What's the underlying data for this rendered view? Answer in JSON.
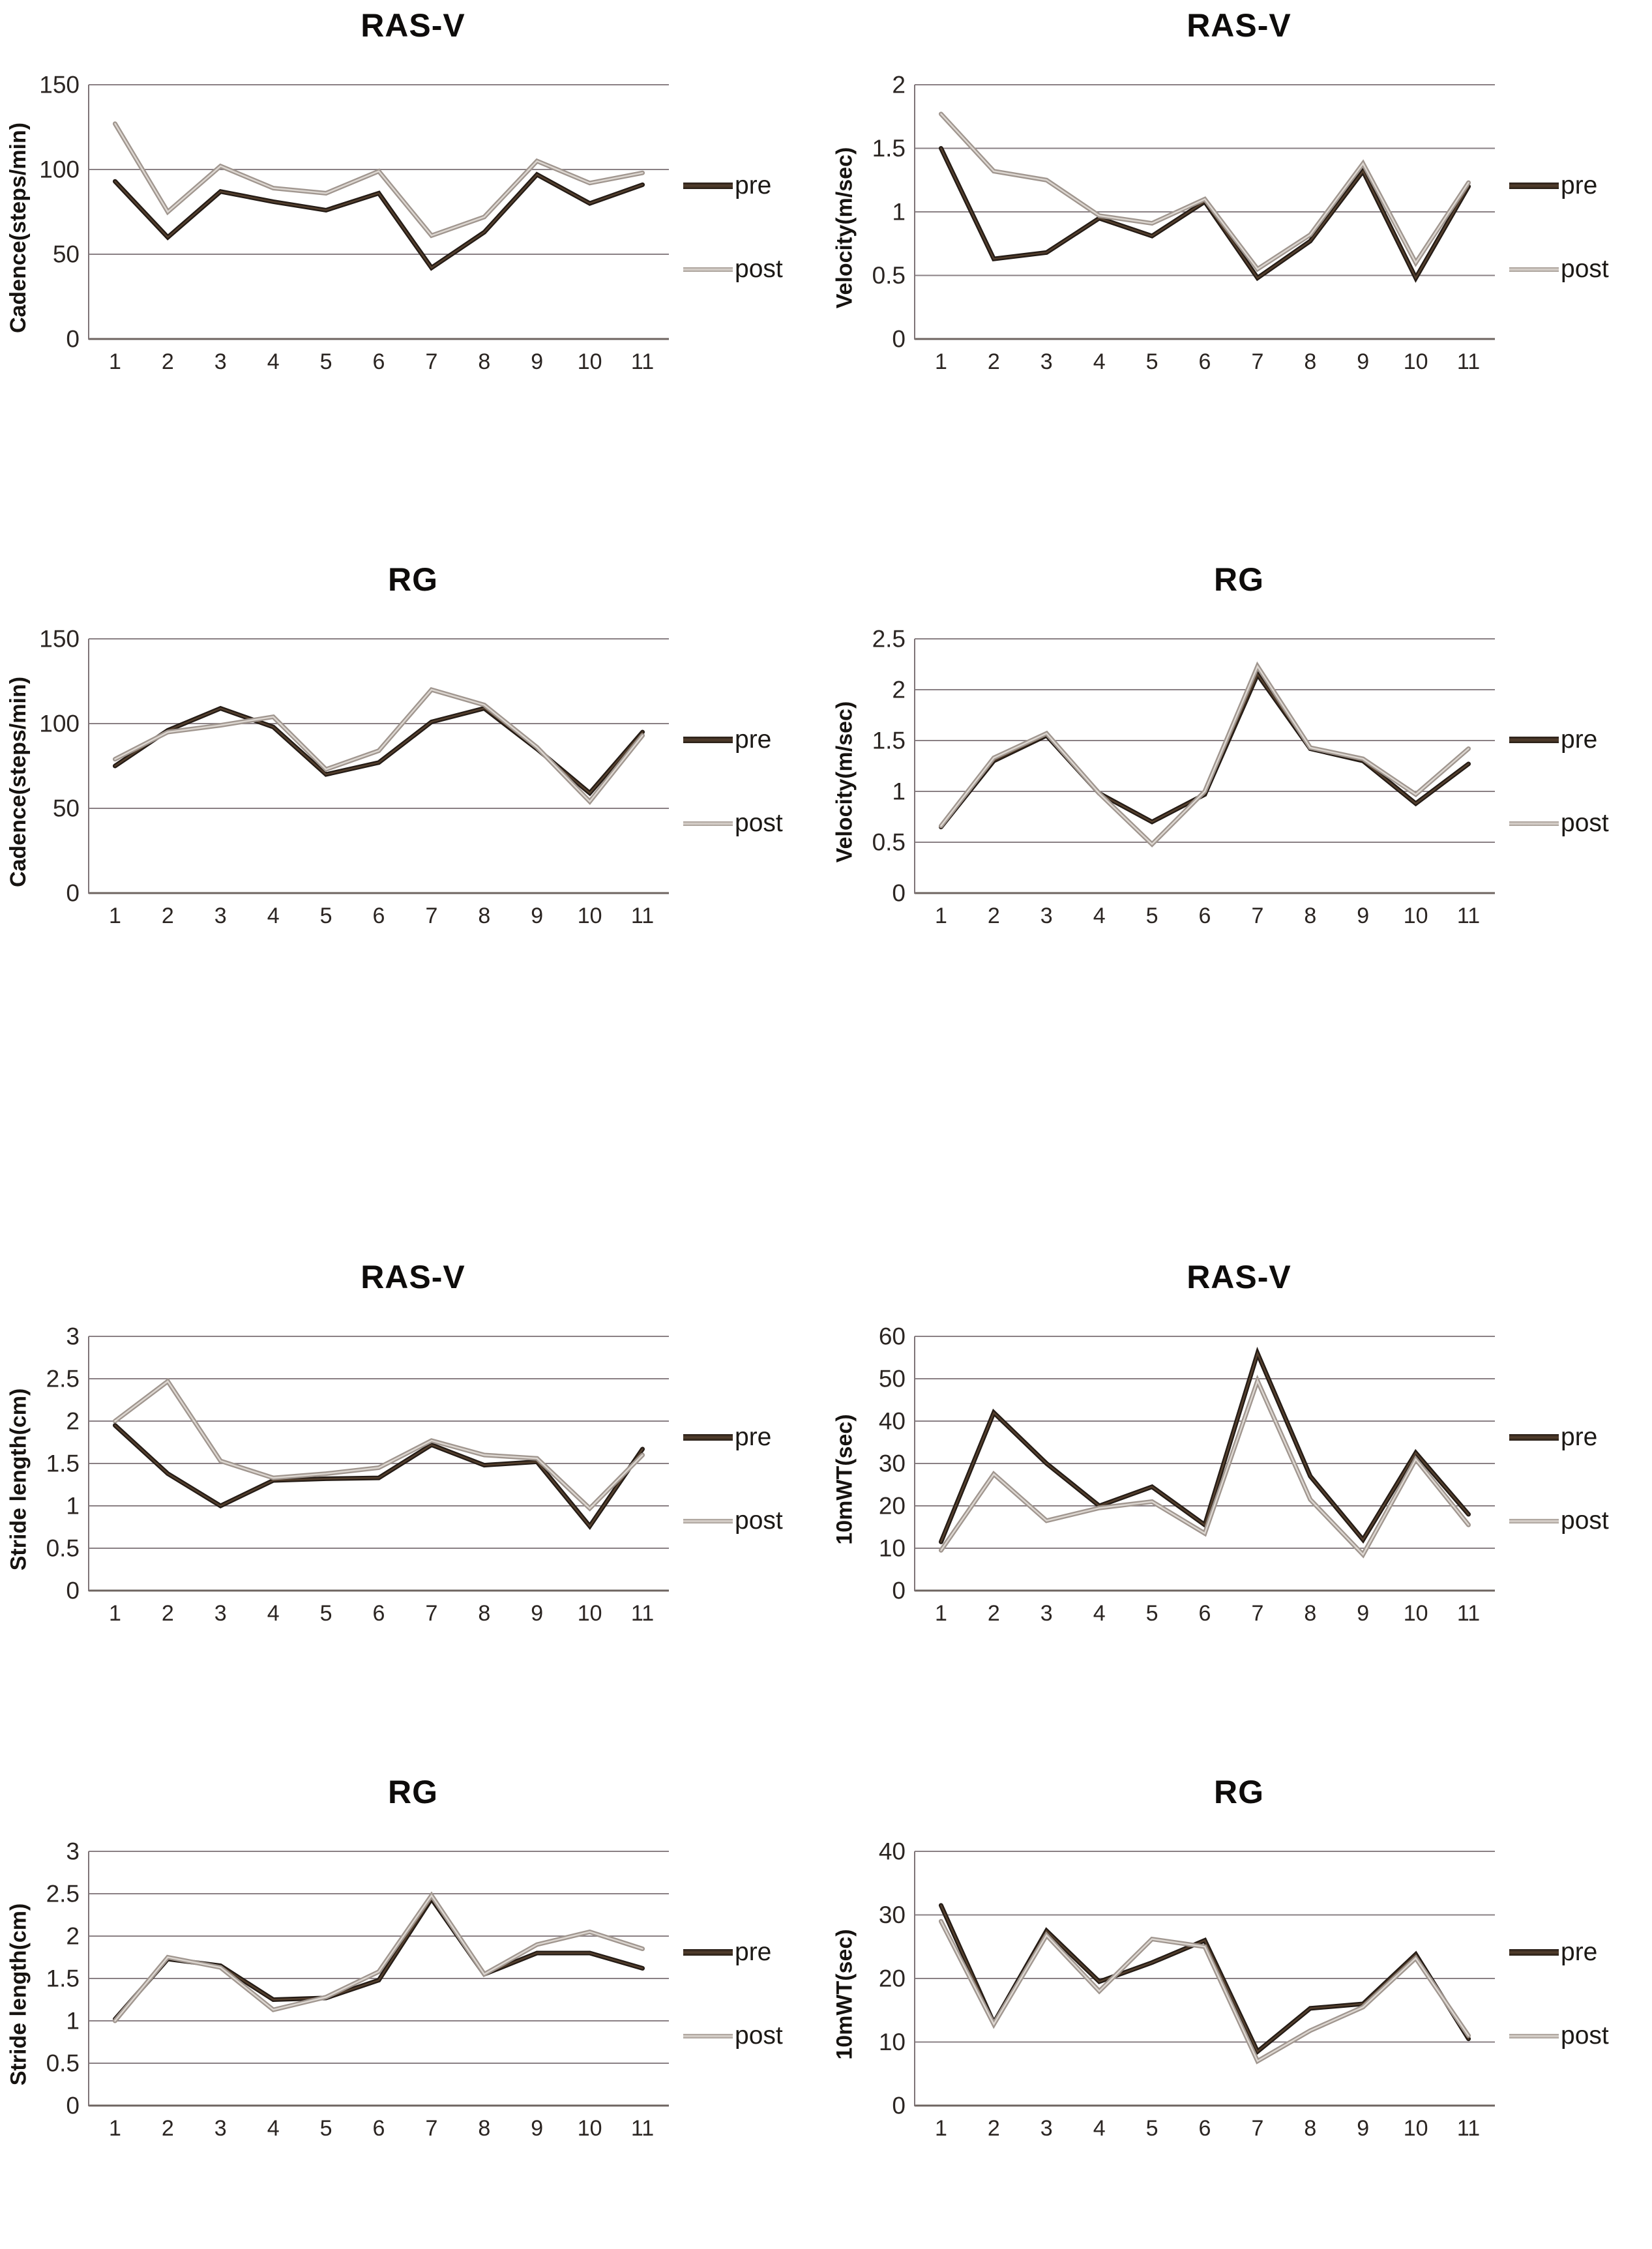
{
  "legend": {
    "pre": "pre",
    "post": "post"
  },
  "colors": {
    "pre_outer": "#241b15",
    "pre_inner": "#55402e",
    "post_outer": "#a0968f",
    "post_inner": "#ddd7d1",
    "grid": "#8a8084",
    "zero_axis": "#6e6460",
    "axis_line": "#7e7477",
    "tick_text": "#2b2522",
    "title_text": "#0e0c0b"
  },
  "chart_layout": {
    "legend_position": "right",
    "grid": true,
    "x_axis_type": "category"
  },
  "chart_data": [
    {
      "type": "line",
      "title": "RAS-V",
      "ylabel": "Cadence(steps/min)",
      "xlabel": "",
      "categories": [
        "1",
        "2",
        "3",
        "4",
        "5",
        "6",
        "7",
        "8",
        "9",
        "10",
        "11"
      ],
      "ymax": 150,
      "yticks": [
        0,
        50,
        100,
        150
      ],
      "series": [
        {
          "name": "pre",
          "values": [
            93,
            60,
            87,
            81,
            76,
            86,
            42,
            63,
            97,
            80,
            91
          ]
        },
        {
          "name": "post",
          "values": [
            127,
            75,
            102,
            89,
            86,
            99,
            61,
            72,
            105,
            92,
            98
          ]
        }
      ]
    },
    {
      "type": "line",
      "title": "RAS-V",
      "ylabel": "Velocity(m/sec)",
      "xlabel": "",
      "categories": [
        "1",
        "2",
        "3",
        "4",
        "5",
        "6",
        "7",
        "8",
        "9",
        "10",
        "11"
      ],
      "ymax": 2,
      "yticks": [
        0,
        0.5,
        1,
        1.5,
        2
      ],
      "series": [
        {
          "name": "pre",
          "values": [
            1.5,
            0.63,
            0.68,
            0.95,
            0.81,
            1.08,
            0.48,
            0.77,
            1.32,
            0.48,
            1.2
          ]
        },
        {
          "name": "post",
          "values": [
            1.77,
            1.32,
            1.25,
            0.97,
            0.91,
            1.1,
            0.55,
            0.82,
            1.38,
            0.6,
            1.23
          ]
        }
      ]
    },
    {
      "type": "line",
      "title": "RG",
      "ylabel": "Cadence(steps/min)",
      "xlabel": "",
      "categories": [
        "1",
        "2",
        "3",
        "4",
        "5",
        "6",
        "7",
        "8",
        "9",
        "10",
        "11"
      ],
      "ymax": 150,
      "yticks": [
        0,
        50,
        100,
        150
      ],
      "series": [
        {
          "name": "pre",
          "values": [
            75,
            96,
            109,
            98,
            70,
            77,
            101,
            109,
            85,
            59,
            95
          ]
        },
        {
          "name": "post",
          "values": [
            79,
            95,
            99,
            104,
            73,
            84,
            120,
            111,
            86,
            54,
            93
          ]
        }
      ]
    },
    {
      "type": "line",
      "title": "RG",
      "ylabel": "Velocity(m/sec)",
      "xlabel": "",
      "categories": [
        "1",
        "2",
        "3",
        "4",
        "5",
        "6",
        "7",
        "8",
        "9",
        "10",
        "11"
      ],
      "ymax": 2.5,
      "yticks": [
        0,
        0.5,
        1,
        1.5,
        2,
        2.5
      ],
      "series": [
        {
          "name": "pre",
          "values": [
            0.65,
            1.3,
            1.55,
            0.98,
            0.7,
            0.97,
            2.15,
            1.42,
            1.3,
            0.88,
            1.27
          ]
        },
        {
          "name": "post",
          "values": [
            0.66,
            1.33,
            1.57,
            0.98,
            0.48,
            1.0,
            2.23,
            1.43,
            1.32,
            0.97,
            1.42
          ]
        }
      ]
    },
    {
      "type": "line",
      "title": "RAS-V",
      "ylabel": "Stride length(cm)",
      "xlabel": "",
      "categories": [
        "1",
        "2",
        "3",
        "4",
        "5",
        "6",
        "7",
        "8",
        "9",
        "10",
        "11"
      ],
      "ymax": 3,
      "yticks": [
        0,
        0.5,
        1,
        1.5,
        2,
        2.5,
        3
      ],
      "series": [
        {
          "name": "pre",
          "values": [
            1.95,
            1.38,
            1.0,
            1.3,
            1.32,
            1.33,
            1.72,
            1.48,
            1.52,
            0.76,
            1.67
          ]
        },
        {
          "name": "post",
          "values": [
            2.0,
            2.47,
            1.53,
            1.33,
            1.38,
            1.45,
            1.77,
            1.6,
            1.56,
            0.97,
            1.6
          ]
        }
      ]
    },
    {
      "type": "line",
      "title": "RAS-V",
      "ylabel": "10mWT(sec)",
      "xlabel": "",
      "categories": [
        "1",
        "2",
        "3",
        "4",
        "5",
        "6",
        "7",
        "8",
        "9",
        "10",
        "11"
      ],
      "ymax": 60,
      "yticks": [
        0,
        10,
        20,
        30,
        40,
        50,
        60
      ],
      "series": [
        {
          "name": "pre",
          "values": [
            11.5,
            42,
            30,
            20,
            24.5,
            15.5,
            56,
            27,
            12,
            32.5,
            18
          ]
        },
        {
          "name": "post",
          "values": [
            9.5,
            27.5,
            16.5,
            19.5,
            21,
            13.5,
            49.5,
            21.5,
            8.5,
            31,
            15.5
          ]
        }
      ]
    },
    {
      "type": "line",
      "title": "RG",
      "ylabel": "Stride length(cm)",
      "xlabel": "",
      "categories": [
        "1",
        "2",
        "3",
        "4",
        "5",
        "6",
        "7",
        "8",
        "9",
        "10",
        "11"
      ],
      "ymax": 3,
      "yticks": [
        0,
        0.5,
        1,
        1.5,
        2,
        2.5,
        3
      ],
      "series": [
        {
          "name": "pre",
          "values": [
            1.02,
            1.73,
            1.65,
            1.25,
            1.27,
            1.48,
            2.44,
            1.55,
            1.8,
            1.8,
            1.62
          ]
        },
        {
          "name": "post",
          "values": [
            1.0,
            1.75,
            1.63,
            1.13,
            1.28,
            1.58,
            2.48,
            1.55,
            1.9,
            2.05,
            1.85
          ]
        }
      ]
    },
    {
      "type": "line",
      "title": "RG",
      "ylabel": "10mWT(sec)",
      "xlabel": "",
      "categories": [
        "1",
        "2",
        "3",
        "4",
        "5",
        "6",
        "7",
        "8",
        "9",
        "10",
        "11"
      ],
      "ymax": 40,
      "yticks": [
        0,
        10,
        20,
        30,
        40
      ],
      "series": [
        {
          "name": "pre",
          "values": [
            31.5,
            13,
            27.5,
            19.5,
            22.5,
            26,
            8.5,
            15.3,
            16,
            23.8,
            10.5
          ]
        },
        {
          "name": "post",
          "values": [
            29,
            12.8,
            26.8,
            18,
            26.2,
            25,
            7,
            11.8,
            15.5,
            23.2,
            11
          ]
        }
      ]
    }
  ]
}
